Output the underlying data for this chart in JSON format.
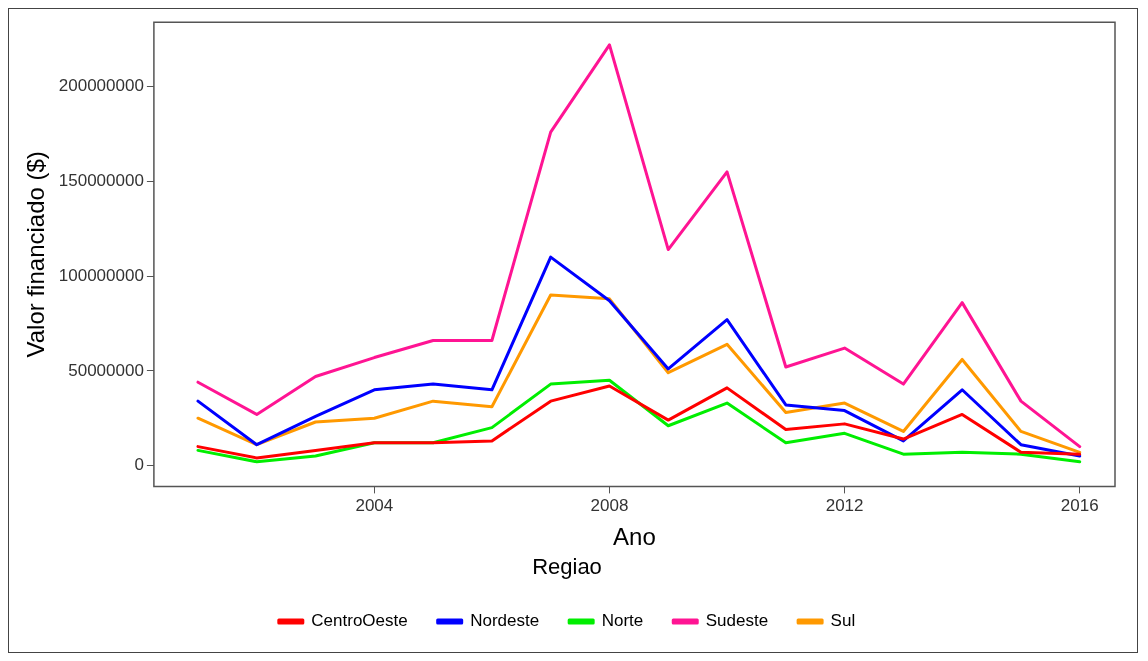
{
  "chart_data": {
    "type": "line",
    "xlabel": "Ano",
    "ylabel": "Valor financiado ($)",
    "legend_title": "Regiao",
    "legend": "bottom",
    "grid": false,
    "line_style": "solid",
    "marker": "none",
    "x": [
      2001,
      2002,
      2003,
      2004,
      2005,
      2006,
      2007,
      2008,
      2009,
      2010,
      2011,
      2012,
      2013,
      2014,
      2015,
      2016
    ],
    "xlim": [
      2000.25,
      2016.6
    ],
    "xticks": [
      2004,
      2008,
      2012,
      2016
    ],
    "ylim": [
      -11000000,
      234000000
    ],
    "yticks": [
      0,
      50000000,
      100000000,
      150000000,
      200000000
    ],
    "series": [
      {
        "name": "CentroOeste",
        "color": "#ff0000",
        "values": [
          10000000,
          4000000,
          8000000,
          12000000,
          12000000,
          13000000,
          34000000,
          42000000,
          24000000,
          41000000,
          19000000,
          22000000,
          14000000,
          27000000,
          7000000,
          6000000
        ]
      },
      {
        "name": "Nordeste",
        "color": "#0000ff",
        "values": [
          34000000,
          11000000,
          26000000,
          40000000,
          43000000,
          40000000,
          110000000,
          87000000,
          51000000,
          77000000,
          32000000,
          29000000,
          13000000,
          40000000,
          11000000,
          5000000
        ]
      },
      {
        "name": "Norte",
        "color": "#00ee00",
        "values": [
          8000000,
          2000000,
          5000000,
          12000000,
          12000000,
          20000000,
          43000000,
          45000000,
          21000000,
          33000000,
          12000000,
          17000000,
          6000000,
          7000000,
          6000000,
          2000000
        ]
      },
      {
        "name": "Sudeste",
        "color": "#ff1493",
        "values": [
          44000000,
          27000000,
          47000000,
          57000000,
          66000000,
          66000000,
          176000000,
          222000000,
          114000000,
          155000000,
          52000000,
          62000000,
          43000000,
          86000000,
          34000000,
          10000000
        ]
      },
      {
        "name": "Sul",
        "color": "#ff9900",
        "values": [
          25000000,
          11000000,
          23000000,
          25000000,
          34000000,
          31000000,
          90000000,
          88000000,
          49000000,
          64000000,
          28000000,
          33000000,
          18000000,
          56000000,
          18000000,
          7000000
        ]
      }
    ]
  }
}
